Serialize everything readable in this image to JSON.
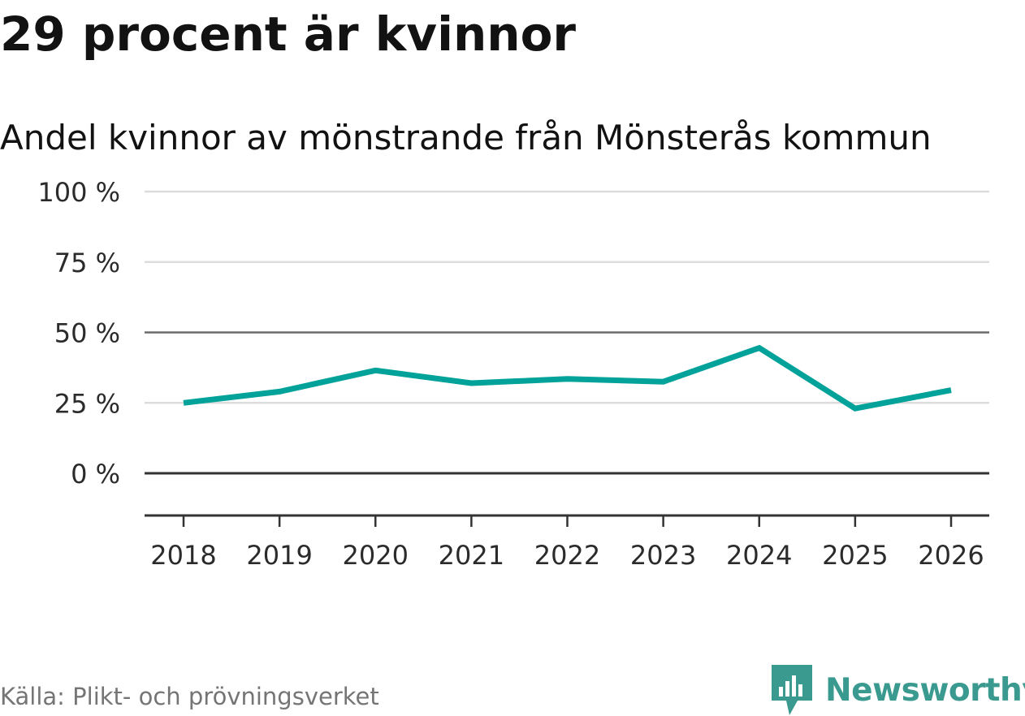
{
  "chart_data": {
    "type": "line",
    "title": "29 procent är kvinnor",
    "subtitle": "Andel kvinnor av mönstrande från Mönsterås kommun",
    "x": [
      "2018",
      "2019",
      "2020",
      "2021",
      "2022",
      "2023",
      "2024",
      "2025",
      "2026"
    ],
    "series": [
      {
        "name": "Andel kvinnor",
        "values": [
          25,
          29,
          36.5,
          32,
          33.5,
          32.5,
          44.5,
          23,
          29.5
        ],
        "color": "#00a29a"
      }
    ],
    "y_ticks": [
      0,
      25,
      50,
      75,
      100
    ],
    "y_tick_labels": [
      "0 %",
      "25 %",
      "50 %",
      "75 %",
      "100 %"
    ],
    "ylim": [
      -15,
      100
    ],
    "grid": true,
    "xlabel": "",
    "ylabel": ""
  },
  "source": "Källa: Plikt- och prövningsverket",
  "brand": {
    "name": "Newsworthy",
    "color": "#3a9a8f",
    "icon": "newsworthy-logo-icon"
  },
  "colors": {
    "gridline": "#dcdcdc",
    "emphasis_gridline": "#6b6b6b",
    "zero_line": "#333333",
    "axis_line": "#333333"
  }
}
